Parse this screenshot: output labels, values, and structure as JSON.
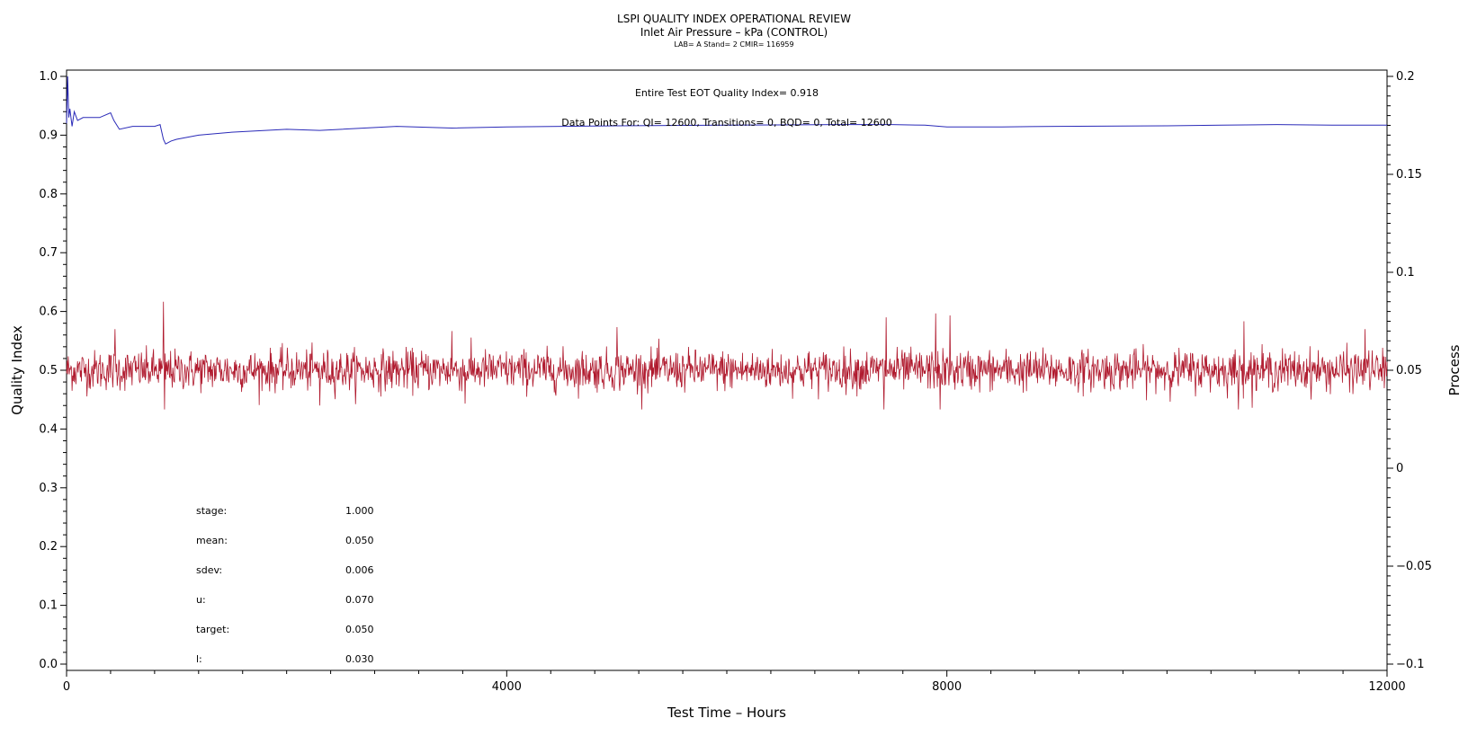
{
  "chart_data": {
    "type": "line",
    "title": "LSPI QUALITY INDEX OPERATIONAL REVIEW",
    "subtitle": "Inlet Air Pressure – kPa (CONTROL)",
    "subtitle2": "LAB= A Stand= 2 CMIR= 116959",
    "xlabel": "Test Time – Hours",
    "ylabel": "Quality Index",
    "ylabel_right": "Process",
    "xlim": [
      0,
      12000
    ],
    "ylim": [
      0.0,
      1.0
    ],
    "ylim_right": [
      -0.1,
      0.2
    ],
    "x_ticks": [
      "0",
      "4000",
      "8000",
      "12000"
    ],
    "y_ticks": [
      "0.0",
      "0.1",
      "0.2",
      "0.3",
      "0.4",
      "0.5",
      "0.6",
      "0.7",
      "0.8",
      "0.9",
      "1.0"
    ],
    "y_ticks_right": [
      "−0.1",
      "−0.05",
      "0",
      "0.05",
      "0.1",
      "0.15",
      "0.2"
    ],
    "annotations": {
      "quality_index_text": "Entire Test EOT Quality Index=   0.918",
      "data_points_text": "Data Points For: QI= 12600, Transitions=     0, BQD=     0, Total= 12600"
    },
    "stats": [
      {
        "label": "stage:",
        "value": "1.000"
      },
      {
        "label": "mean:",
        "value": "0.050"
      },
      {
        "label": "sdev:",
        "value": "0.006"
      },
      {
        "label": "u:",
        "value": "0.070"
      },
      {
        "label": "target:",
        "value": "0.050"
      },
      {
        "label": "l:",
        "value": "0.030"
      }
    ],
    "series": [
      {
        "color": "#2a2ab8",
        "axis": "left",
        "x": [
          0,
          10,
          20,
          30,
          50,
          70,
          100,
          150,
          200,
          300,
          400,
          430,
          480,
          600,
          700,
          800,
          850,
          880,
          900,
          950,
          1000,
          1200,
          1500,
          2000,
          2300,
          2500,
          3000,
          3500,
          4000,
          5000,
          6000,
          7000,
          7500,
          7800,
          8000,
          8500,
          9000,
          10000,
          10500,
          11000,
          11500,
          12000
        ],
        "y": [
          0.92,
          1.0,
          0.93,
          0.945,
          0.915,
          0.94,
          0.925,
          0.93,
          0.93,
          0.93,
          0.938,
          0.925,
          0.91,
          0.915,
          0.915,
          0.915,
          0.918,
          0.893,
          0.885,
          0.89,
          0.893,
          0.9,
          0.905,
          0.91,
          0.908,
          0.91,
          0.915,
          0.912,
          0.914,
          0.916,
          0.917,
          0.918,
          0.918,
          0.917,
          0.914,
          0.914,
          0.915,
          0.916,
          0.917,
          0.918,
          0.917,
          0.917
        ]
      },
      {
        "color": "#b01a2e",
        "axis": "right",
        "mean": 0.05,
        "sdev": 0.006,
        "n": 12600,
        "note": "high-frequency process trace around mean 0.050",
        "spikes": [
          {
            "x": 440,
            "y": 0.071
          },
          {
            "x": 880,
            "y": 0.085
          },
          {
            "x": 890,
            "y": 0.029
          },
          {
            "x": 2300,
            "y": 0.032
          },
          {
            "x": 3500,
            "y": 0.07
          },
          {
            "x": 3620,
            "y": 0.033
          },
          {
            "x": 5000,
            "y": 0.072
          },
          {
            "x": 7450,
            "y": 0.077
          },
          {
            "x": 7430,
            "y": 0.028
          },
          {
            "x": 7900,
            "y": 0.079
          },
          {
            "x": 7940,
            "y": 0.027
          },
          {
            "x": 8030,
            "y": 0.078
          },
          {
            "x": 10650,
            "y": 0.025
          },
          {
            "x": 10700,
            "y": 0.075
          },
          {
            "x": 11800,
            "y": 0.071
          }
        ]
      }
    ]
  }
}
